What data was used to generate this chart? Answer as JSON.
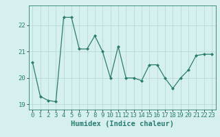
{
  "x": [
    0,
    1,
    2,
    3,
    4,
    5,
    6,
    7,
    8,
    9,
    10,
    11,
    12,
    13,
    14,
    15,
    16,
    17,
    18,
    19,
    20,
    21,
    22,
    23
  ],
  "y": [
    20.6,
    19.3,
    19.15,
    19.1,
    22.3,
    22.3,
    21.1,
    21.1,
    21.6,
    21.0,
    20.0,
    21.2,
    20.0,
    20.0,
    19.9,
    20.5,
    20.5,
    20.0,
    19.6,
    20.0,
    20.3,
    20.85,
    20.9,
    20.9
  ],
  "line_color": "#2a7d6e",
  "marker": "D",
  "marker_size": 2.0,
  "bg_color": "#d6f0ef",
  "grid_color": "#b8dbd8",
  "xlabel": "Humidex (Indice chaleur)",
  "xlabel_fontsize": 7.5,
  "tick_fontsize": 6.5,
  "ylim": [
    18.8,
    22.75
  ],
  "yticks": [
    19,
    20,
    21,
    22
  ],
  "xlim": [
    -0.5,
    23.5
  ],
  "linewidth": 0.9
}
